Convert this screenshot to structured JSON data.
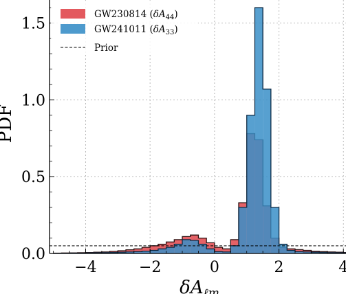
{
  "chart_data": {
    "type": "bar",
    "xlabel": "δA",
    "xlabel_sub": "ℓm",
    "ylabel": "PDF",
    "xlim": [
      -5,
      5
    ],
    "ylim": [
      0,
      1.65
    ],
    "grid": true,
    "legend_position": "top-left",
    "x_ticks": [
      -4,
      -2,
      0,
      2,
      4
    ],
    "x_tick_labels": [
      "−4",
      "−2",
      "0",
      "2",
      "4"
    ],
    "y_ticks": [
      0.0,
      0.5,
      1.0,
      1.5
    ],
    "y_tick_labels": [
      "0.0",
      "0.5",
      "1.0",
      "1.5"
    ],
    "bin_width": 0.25,
    "series": [
      {
        "name": "GW230814 (δA44)",
        "legend_main": "GW230814 (",
        "legend_var": "δA",
        "legend_sub": "44",
        "legend_close": ")",
        "color": "#e0474c",
        "edge": "#2a1010",
        "bin_start": -5.0,
        "values": [
          0.002,
          0.003,
          0.004,
          0.005,
          0.006,
          0.008,
          0.01,
          0.014,
          0.018,
          0.024,
          0.03,
          0.04,
          0.05,
          0.06,
          0.075,
          0.09,
          0.11,
          0.12,
          0.1,
          0.07,
          0.04,
          0.03,
          0.09,
          0.33,
          0.78,
          0.74,
          0.31,
          0.1,
          0.04,
          0.03,
          0.025,
          0.02,
          0.015,
          0.012,
          0.01,
          0.008,
          0.006,
          0.005,
          0.004,
          0.003
        ]
      },
      {
        "name": "GW241011 (δA33)",
        "legend_main": "GW241011 (",
        "legend_var": "δA",
        "legend_sub": "33",
        "legend_close": ")",
        "color": "#3a8fc8",
        "edge": "#0e2a44",
        "bin_start": -5.0,
        "values": [
          0.001,
          0.001,
          0.002,
          0.002,
          0.003,
          0.004,
          0.005,
          0.006,
          0.008,
          0.01,
          0.012,
          0.015,
          0.02,
          0.03,
          0.04,
          0.06,
          0.09,
          0.085,
          0.06,
          0.03,
          0.012,
          0.01,
          0.05,
          0.3,
          0.9,
          1.6,
          1.07,
          0.3,
          0.06,
          0.02,
          0.012,
          0.01,
          0.008,
          0.006,
          0.005,
          0.004,
          0.003,
          0.002,
          0.002,
          0.001
        ]
      }
    ],
    "prior": {
      "name": "Prior",
      "value": 0.05
    }
  }
}
